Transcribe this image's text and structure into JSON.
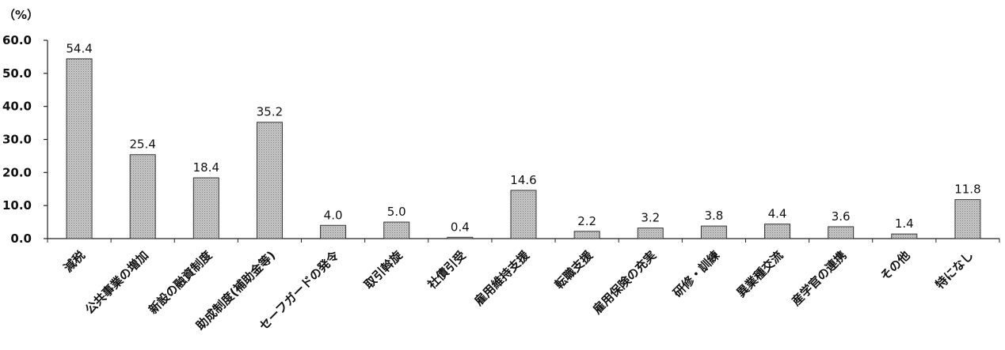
{
  "chart_data": {
    "type": "bar",
    "unit_label": "（%）",
    "categories": [
      "減税",
      "公共事業の増加",
      "新設の融資制度",
      "助成制度(補助金等)",
      "セーフガードの発令",
      "取引斡旋",
      "社債引受",
      "雇用維持支援",
      "転職支援",
      "雇用保険の充実",
      "研修・訓練",
      "異業種交流",
      "産学官の連携",
      "その他",
      "特になし"
    ],
    "values": [
      54.4,
      25.4,
      18.4,
      35.2,
      4.0,
      5.0,
      0.4,
      14.6,
      2.2,
      3.2,
      3.8,
      4.4,
      3.6,
      1.4,
      11.8
    ],
    "value_labels": [
      "54.4",
      "25.4",
      "18.4",
      "35.2",
      "4.0",
      "5.0",
      "0.4",
      "14.6",
      "2.2",
      "3.2",
      "3.8",
      "4.4",
      "3.6",
      "1.4",
      "11.8"
    ],
    "ylim": [
      0,
      60
    ],
    "yticks": [
      "0.0",
      "10.0",
      "20.0",
      "30.0",
      "40.0",
      "50.0",
      "60.0"
    ],
    "grid": false,
    "bar_color": "#b4b4b4"
  }
}
